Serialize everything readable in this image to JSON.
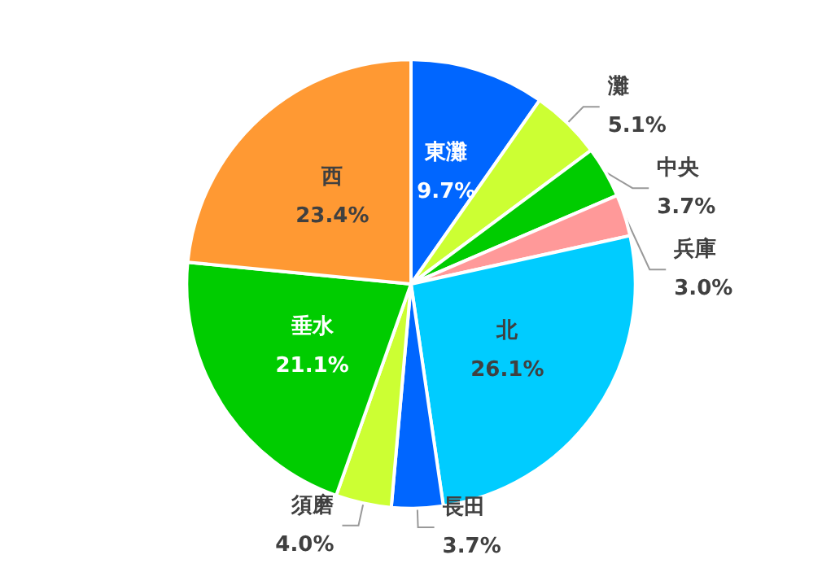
{
  "chart_data": {
    "type": "pie",
    "categories": [
      "東灘",
      "灘",
      "中央",
      "兵庫",
      "北",
      "長田",
      "須磨",
      "垂水",
      "西"
    ],
    "values": [
      9.7,
      5.1,
      3.7,
      3.0,
      26.1,
      3.7,
      4.0,
      21.1,
      23.4
    ],
    "value_labels": [
      "9.7%",
      "5.1%",
      "3.7%",
      "3.0%",
      "26.1%",
      "3.7%",
      "4.0%",
      "21.1%",
      "23.4%"
    ],
    "colors": [
      "#0066ff",
      "#ccff33",
      "#00cc00",
      "#ff9999",
      "#00ccff",
      "#0066ff",
      "#ccff33",
      "#00cc00",
      "#ff9933"
    ],
    "legend": false
  }
}
